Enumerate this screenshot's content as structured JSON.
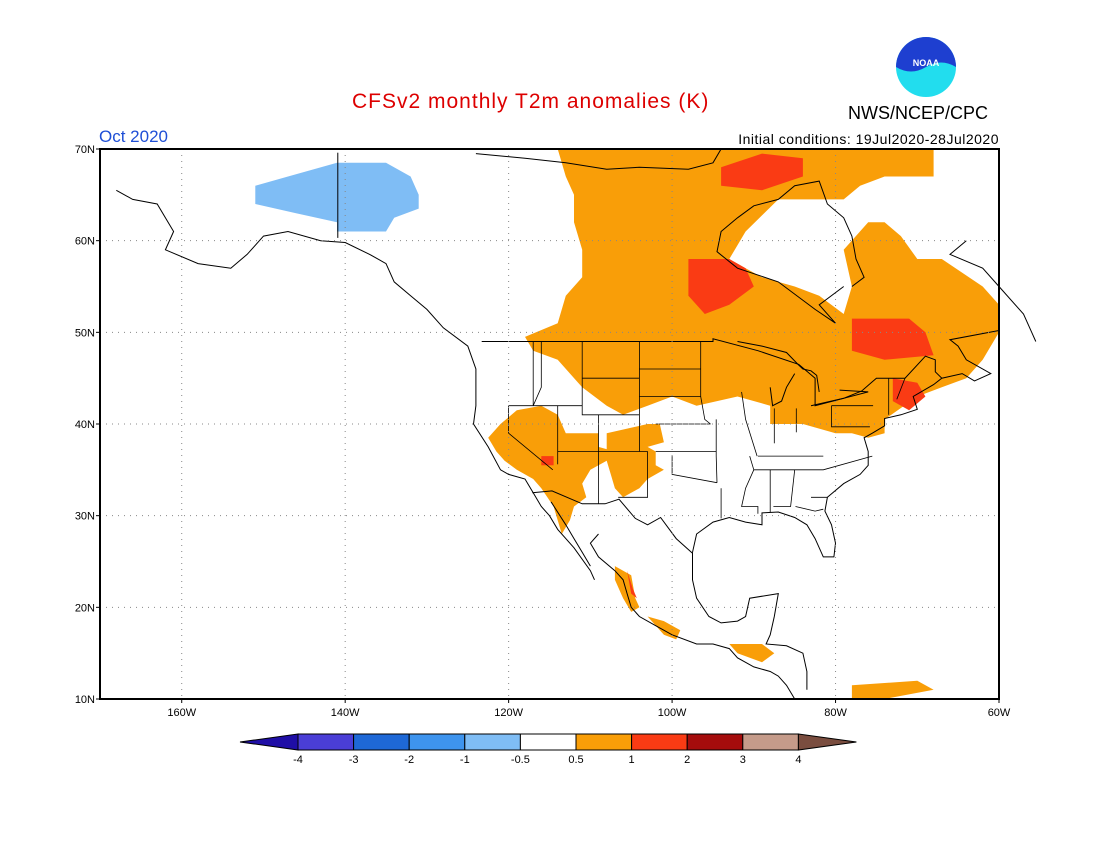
{
  "header": {
    "title": "CFSv2 monthly T2m anomalies (K)",
    "month": "Oct 2020",
    "initial_conditions": "Initial conditions: 19Jul2020-28Jul2020",
    "agency": "NWS/NCEP/CPC",
    "logo_text": "NOAA"
  },
  "colors": {
    "title": "#dd0000",
    "month": "#1f4fd6",
    "frame": "#000000",
    "gridline": "#888888",
    "coast": "#000000",
    "logo_blue": "#1e3fd0",
    "logo_cyan": "#22ddee"
  },
  "map": {
    "projection": "cylindrical equidistant",
    "lon_range": [
      -170,
      -60
    ],
    "lat_range": [
      10,
      70
    ],
    "lon_ticks": [
      "160W",
      "140W",
      "120W",
      "100W",
      "80W",
      "60W"
    ],
    "lat_ticks": [
      "70N",
      "60N",
      "50N",
      "40N",
      "30N",
      "20N",
      "10N"
    ]
  },
  "legend": {
    "labels": [
      "-4",
      "-3",
      "-2",
      "-1",
      "-0.5",
      "0.5",
      "1",
      "2",
      "3",
      "4"
    ],
    "colors": [
      "#1f0ea6",
      "#4a3ed6",
      "#1e68d6",
      "#3e94ee",
      "#7fbdf5",
      "#ffffff",
      "#f99e08",
      "#fa3b14",
      "#a50c0c",
      "#c59b8a",
      "#7a4d3f"
    ]
  }
}
